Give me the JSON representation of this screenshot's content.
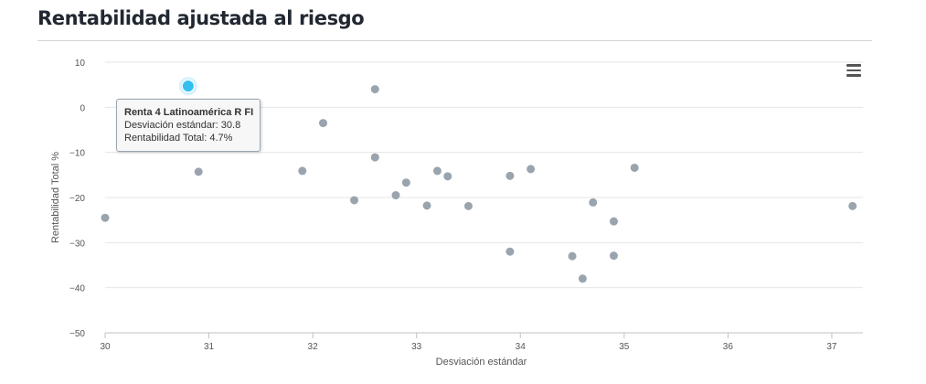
{
  "page": {
    "title": "Rentabilidad ajustada al riesgo",
    "menu_icon": "hamburger-menu-icon"
  },
  "tooltip": {
    "name": "Renta 4 Latinoamérica R FI",
    "x_label": "Desviación estándar",
    "x_value": "30.8",
    "y_label": "Rentabilidad Total",
    "y_value": "4.7%"
  },
  "colors": {
    "point": "#9aa4ae",
    "highlight": "#33bfef",
    "grid": "#e6e6e6",
    "title": "#222831"
  },
  "chart_data": {
    "type": "scatter",
    "title": "Rentabilidad ajustada al riesgo",
    "xlabel": "Desviación estándar",
    "ylabel": "Rentabilidad Total %",
    "xlim": [
      30,
      37.3
    ],
    "ylim": [
      -50,
      10
    ],
    "xticks": [
      30,
      31,
      32,
      33,
      34,
      35,
      36,
      37
    ],
    "yticks": [
      10,
      0,
      -10,
      -20,
      -30,
      -40,
      -50
    ],
    "grid": true,
    "highlighted_index": 0,
    "points": [
      {
        "x": 30.8,
        "y": 4.7
      },
      {
        "x": 30.0,
        "y": -24.5
      },
      {
        "x": 30.9,
        "y": -14.3
      },
      {
        "x": 31.9,
        "y": -14.1
      },
      {
        "x": 32.1,
        "y": -3.5
      },
      {
        "x": 32.4,
        "y": -20.6
      },
      {
        "x": 32.6,
        "y": 4.0
      },
      {
        "x": 32.6,
        "y": -11.1
      },
      {
        "x": 32.8,
        "y": -19.5
      },
      {
        "x": 32.9,
        "y": -16.7
      },
      {
        "x": 33.1,
        "y": -21.8
      },
      {
        "x": 33.2,
        "y": -14.1
      },
      {
        "x": 33.3,
        "y": -15.3
      },
      {
        "x": 33.5,
        "y": -21.9
      },
      {
        "x": 33.9,
        "y": -15.2
      },
      {
        "x": 33.9,
        "y": -32.0
      },
      {
        "x": 34.1,
        "y": -13.7
      },
      {
        "x": 34.5,
        "y": -33.0
      },
      {
        "x": 34.6,
        "y": -38.0
      },
      {
        "x": 34.7,
        "y": -21.1
      },
      {
        "x": 34.9,
        "y": -25.3
      },
      {
        "x": 34.9,
        "y": -32.9
      },
      {
        "x": 35.1,
        "y": -13.4
      },
      {
        "x": 37.2,
        "y": -21.9
      }
    ]
  }
}
